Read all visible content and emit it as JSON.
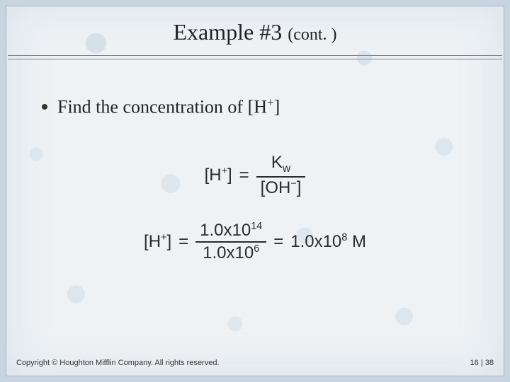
{
  "colors": {
    "page_bg": "#c8d5e0",
    "slide_bg": "#eef2f5",
    "slide_border": "#a8b0b8",
    "rule": "#7a8088",
    "text": "#222222",
    "eq_text": "#2b2b2b",
    "footer_text": "#333333"
  },
  "typography": {
    "title_fontsize_pt": 24,
    "title_cont_fontsize_pt": 18,
    "bullet_fontsize_pt": 20,
    "equation_fontsize_pt": 18,
    "footer_fontsize_pt": 8,
    "title_font": "Times New Roman",
    "equation_font": "Arial"
  },
  "title": {
    "main": "Example #3",
    "cont": "(cont. )"
  },
  "bullet": {
    "prefix": "Find the concentration of [H",
    "sup": "+",
    "suffix": "]"
  },
  "equations": {
    "eq1": {
      "lhs_open": "[H",
      "lhs_sup": "+",
      "lhs_close": "]",
      "eq": "=",
      "num_base": "K",
      "num_sub": "w",
      "den_open": "[OH",
      "den_sup": "−",
      "den_close": "]"
    },
    "eq2": {
      "lhs_open": "[H",
      "lhs_sup": "+",
      "lhs_close": "]",
      "eq": "=",
      "num_main": "1.0x10",
      "num_exp": "14",
      "den_main": "1.0x10",
      "den_exp": "6",
      "eq2": "=",
      "rhs_main": "1.0x10",
      "rhs_exp": "8",
      "rhs_unit": " M"
    }
  },
  "footer": {
    "copyright": "Copyright © Houghton Mifflin Company. All rights reserved.",
    "page_chapter": "16",
    "page_sep": " | ",
    "page_num": "38"
  }
}
